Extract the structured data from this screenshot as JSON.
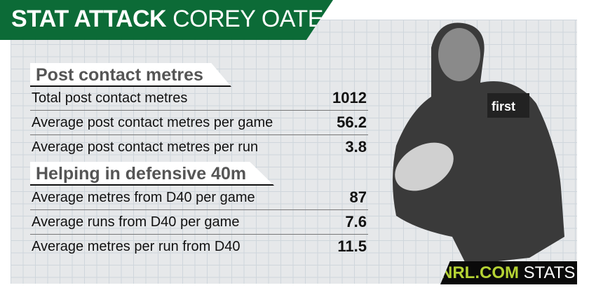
{
  "title": {
    "bold": "STAT ATTACK",
    "name": "COREY OATES"
  },
  "sections": [
    {
      "heading": "Post contact metres",
      "rows": [
        {
          "label": "Total post contact metres",
          "value": "1012"
        },
        {
          "label": "Average post contact metres per game",
          "value": "56.2"
        },
        {
          "label": "Average post contact metres per run",
          "value": "3.8"
        }
      ]
    },
    {
      "heading": "Helping in defensive 40m",
      "rows": [
        {
          "label": "Average metres from D40 per game",
          "value": "87"
        },
        {
          "label": "Average runs from D40 per game",
          "value": "7.6"
        },
        {
          "label": "Average metres per run from D40",
          "value": "11.5"
        }
      ]
    }
  ],
  "logo": {
    "brand": "NRL.COM",
    "suffix": "STATS"
  },
  "colors": {
    "banner": "#0c6b37",
    "logo_green": "#b5d334"
  }
}
